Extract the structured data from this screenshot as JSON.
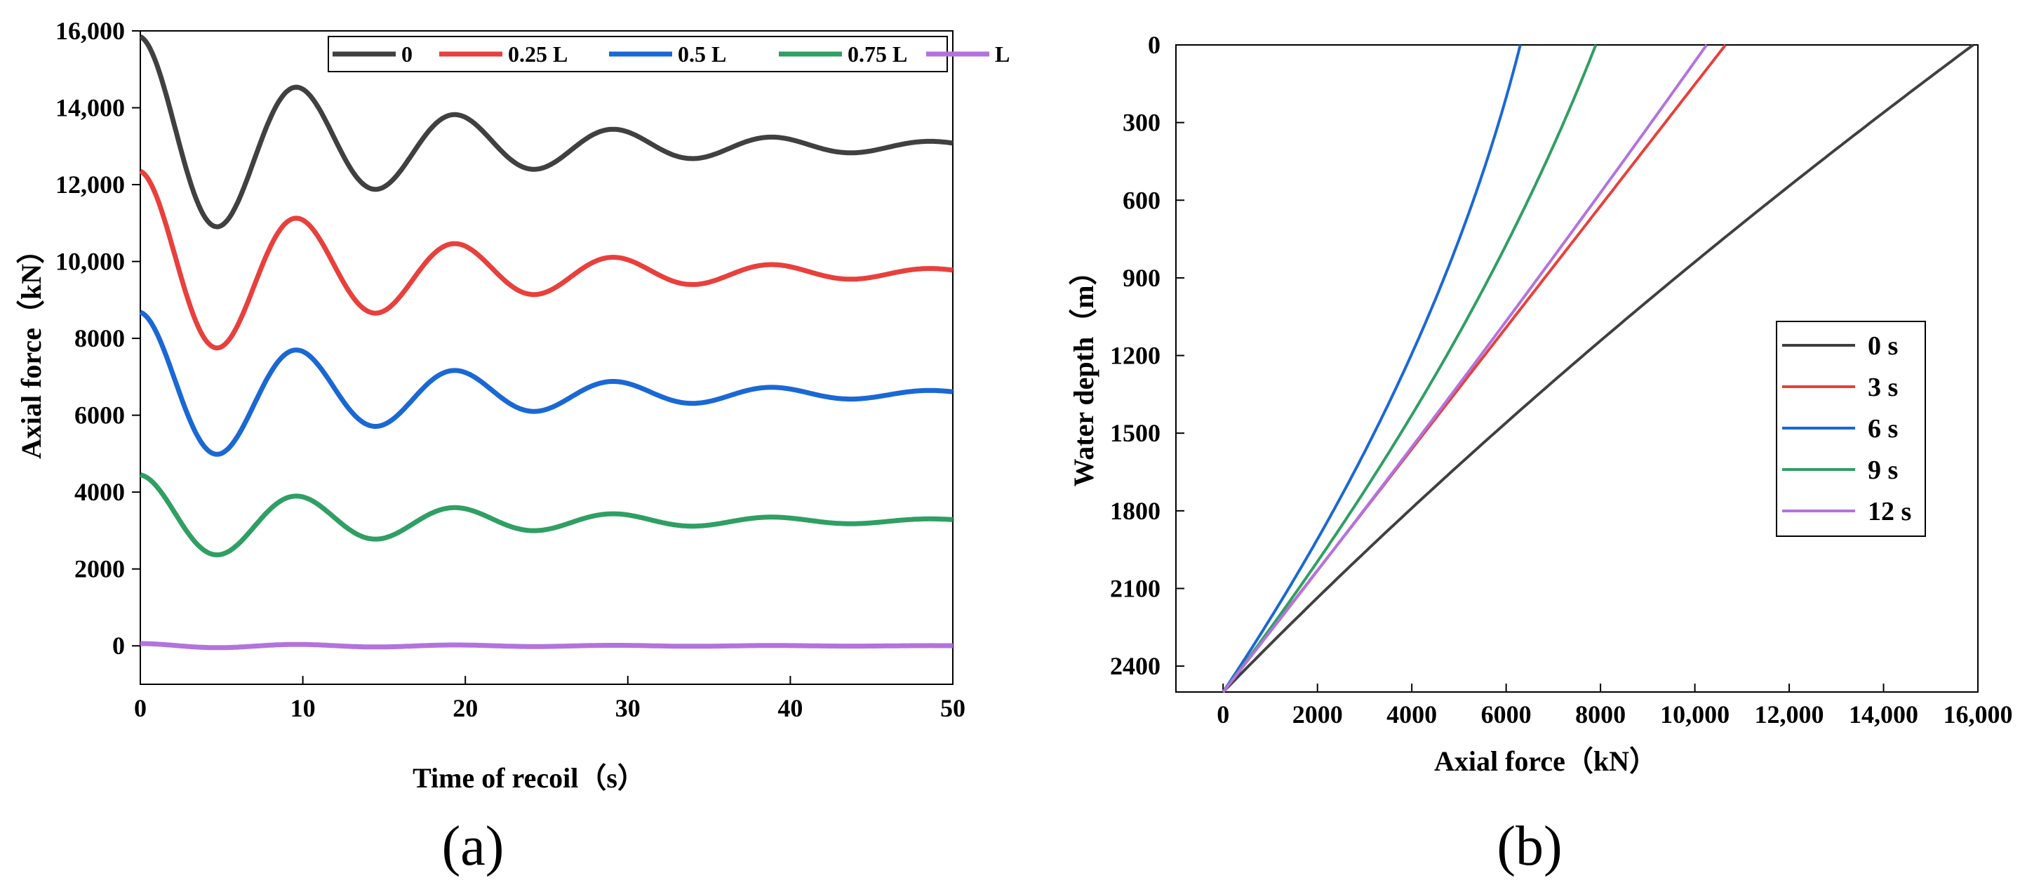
{
  "chart_data": [
    {
      "panel": "a",
      "panel_label": "(a)",
      "type": "line",
      "xlabel": "Time of recoil（s）",
      "ylabel": "Axial force（kN）",
      "xlim": [
        0,
        50
      ],
      "ylim": [
        -1000,
        16000
      ],
      "xticks": [
        0,
        10,
        20,
        30,
        40,
        50
      ],
      "xtick_labels": [
        "0",
        "10",
        "20",
        "30",
        "40",
        "50"
      ],
      "yticks": [
        0,
        2000,
        4000,
        6000,
        8000,
        10000,
        12000,
        14000,
        16000
      ],
      "ytick_labels": [
        "0",
        "2000",
        "4000",
        "6000",
        "8000",
        "10,000",
        "12,000",
        "14,000",
        "16,000"
      ],
      "legend_position": "top-right",
      "series": [
        {
          "name": "0",
          "color": "#404040",
          "mean": 13000,
          "amplitude": 2850,
          "period": 9.75,
          "decay": 0.064,
          "phase": 1.0
        },
        {
          "name": "0.25 L",
          "color": "#e8403c",
          "mean": 9700,
          "amplitude": 2650,
          "period": 9.75,
          "decay": 0.064,
          "phase": 1.0
        },
        {
          "name": "0.5 L",
          "color": "#1a68d4",
          "mean": 6550,
          "amplitude": 2130,
          "period": 9.75,
          "decay": 0.064,
          "phase": 1.0
        },
        {
          "name": "0.75 L",
          "color": "#2f9f63",
          "mean": 3250,
          "amplitude": 1200,
          "period": 9.75,
          "decay": 0.064,
          "phase": 1.0
        },
        {
          "name": "L",
          "color": "#b373dd",
          "mean": 0,
          "amplitude": 60,
          "period": 9.75,
          "decay": 0.05,
          "phase": 1.0
        }
      ]
    },
    {
      "panel": "b",
      "panel_label": "(b)",
      "type": "line",
      "xlabel": "Axial force（kN）",
      "ylabel": "Water depth（m）",
      "xlim": [
        -1000,
        16000
      ],
      "ylim": [
        2500,
        0
      ],
      "xticks": [
        0,
        2000,
        4000,
        6000,
        8000,
        10000,
        12000,
        14000,
        16000
      ],
      "xtick_labels": [
        "0",
        "2000",
        "4000",
        "6000",
        "8000",
        "10,000",
        "12,000",
        "14,000",
        "16,000"
      ],
      "yticks": [
        0,
        300,
        600,
        900,
        1200,
        1500,
        1800,
        2100,
        2400
      ],
      "ytick_labels": [
        "0",
        "300",
        "600",
        "900",
        "1200",
        "1500",
        "1800",
        "2100",
        "2400"
      ],
      "bottom_depth": 2500,
      "legend_position": "center-right",
      "series": [
        {
          "name": "0 s",
          "color": "#404040",
          "top_force": 15900,
          "curvature": -0.16
        },
        {
          "name": "3 s",
          "color": "#e8403c",
          "top_force": 10650,
          "curvature": 0.0
        },
        {
          "name": "6 s",
          "color": "#1a68d4",
          "top_force": 6300,
          "curvature": 0.45
        },
        {
          "name": "9 s",
          "color": "#2f9f63",
          "top_force": 7900,
          "curvature": 0.32
        },
        {
          "name": "12 s",
          "color": "#b373dd",
          "top_force": 10250,
          "curvature": 0.05
        }
      ]
    }
  ]
}
